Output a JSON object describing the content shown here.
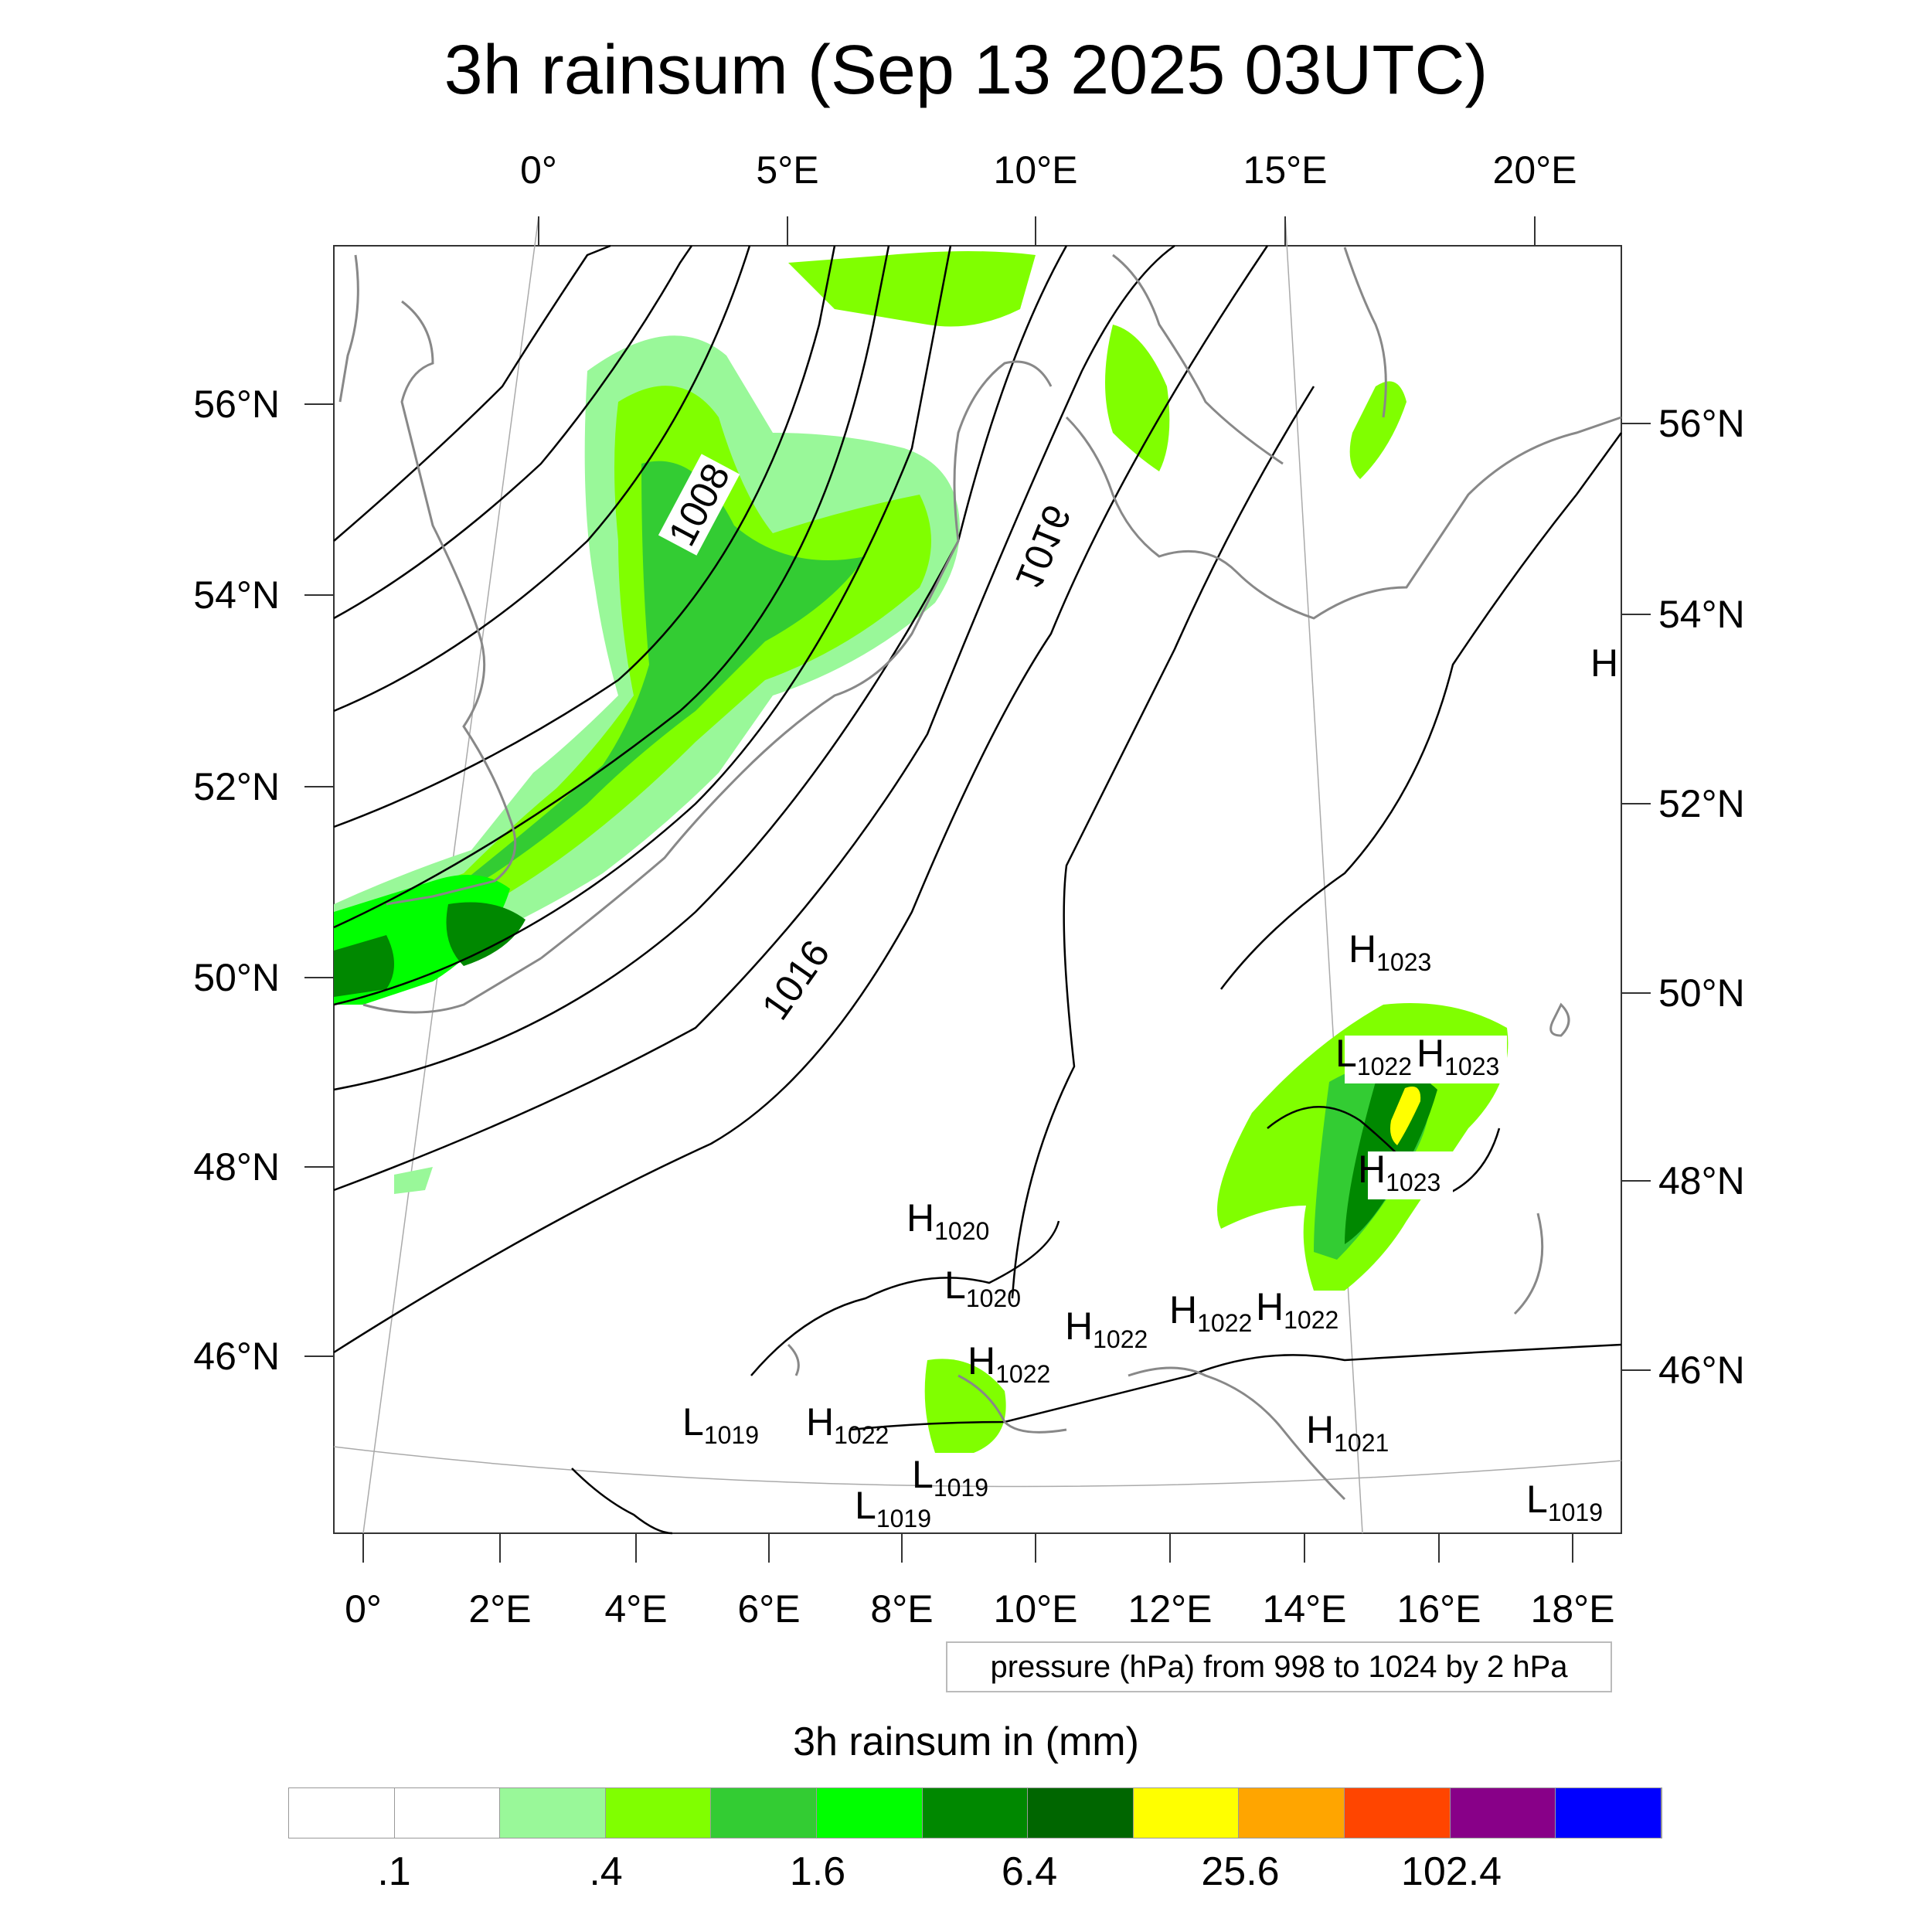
{
  "title": "3h rainsum (Sep 13 2025 03UTC)",
  "top_lon_labels": [
    "0°",
    "5°E",
    "10°E",
    "15°E",
    "20°E"
  ],
  "bottom_lon_labels": [
    "0°",
    "2°E",
    "4°E",
    "6°E",
    "8°E",
    "10°E",
    "12°E",
    "14°E",
    "16°E",
    "18°E"
  ],
  "left_lat_labels": [
    "56°N",
    "54°N",
    "52°N",
    "50°N",
    "48°N",
    "46°N"
  ],
  "right_lat_labels": [
    "56°N",
    "54°N",
    "52°N",
    "50°N",
    "48°N",
    "46°N"
  ],
  "isobar_labels": [
    "1008",
    "1016",
    "1016"
  ],
  "pressure_centers": [
    {
      "type": "H",
      "value": "1023"
    },
    {
      "type": "L",
      "value": "1022"
    },
    {
      "type": "H",
      "value": "1023"
    },
    {
      "type": "H",
      "value": "1023"
    },
    {
      "type": "H",
      "value": "1020"
    },
    {
      "type": "L",
      "value": "1020"
    },
    {
      "type": "H",
      "value": "1022"
    },
    {
      "type": "H",
      "value": "1022"
    },
    {
      "type": "H",
      "value": "1022"
    },
    {
      "type": "H",
      "value": "1022"
    },
    {
      "type": "L",
      "value": "1019"
    },
    {
      "type": "H",
      "value": "1022"
    },
    {
      "type": "L",
      "value": "1019"
    },
    {
      "type": "L",
      "value": "1019"
    },
    {
      "type": "H",
      "value": "1021"
    },
    {
      "type": "L",
      "value": "1019"
    },
    {
      "type": "H",
      "value": ""
    }
  ],
  "pressure_note": "pressure (hPa) from 998 to 1024 by 2 hPa",
  "colorbar": {
    "title": "3h rainsum in (mm)",
    "labels": [
      ".1",
      ".4",
      "1.6",
      "6.4",
      "25.6",
      "102.4"
    ],
    "colors": [
      "#ffffff",
      "#ffffff",
      "#99f899",
      "#80ff00",
      "#33cc33",
      "#00ff00",
      "#008800",
      "#006600",
      "#ffff00",
      "#ffa500",
      "#ff4500",
      "#880088",
      "#0000ff"
    ]
  }
}
